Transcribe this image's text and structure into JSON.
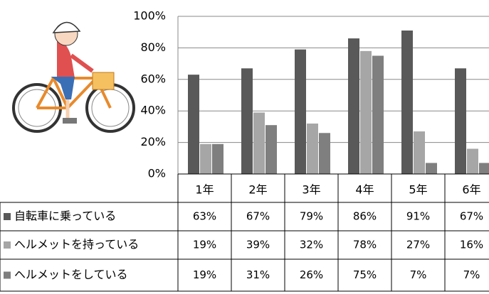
{
  "chart_data": {
    "type": "bar",
    "categories": [
      "1年",
      "2年",
      "3年",
      "4年",
      "5年",
      "6年"
    ],
    "series": [
      {
        "name": "自転車に乗っている",
        "color": "#595959",
        "values": [
          63,
          67,
          79,
          86,
          91,
          67
        ],
        "value_labels": [
          "63%",
          "67%",
          "79%",
          "86%",
          "91%",
          "67%"
        ]
      },
      {
        "name": "ヘルメットを持っている",
        "color": "#a6a6a6",
        "values": [
          19,
          39,
          32,
          78,
          27,
          16
        ],
        "value_labels": [
          "19%",
          "39%",
          "32%",
          "78%",
          "27%",
          "16%"
        ]
      },
      {
        "name": "ヘルメットをしている",
        "color": "#7f7f7f",
        "values": [
          19,
          31,
          26,
          75,
          7,
          7
        ],
        "value_labels": [
          "19%",
          "31%",
          "26%",
          "75%",
          "7%",
          "7%"
        ]
      }
    ],
    "ylim": [
      0,
      100
    ],
    "yticks": [
      {
        "value": 0,
        "label": "0%"
      },
      {
        "value": 20,
        "label": "20%"
      },
      {
        "value": 40,
        "label": "40%"
      },
      {
        "value": 60,
        "label": "60%"
      },
      {
        "value": 80,
        "label": "80%"
      },
      {
        "value": 100,
        "label": "100%"
      }
    ],
    "grid": true
  }
}
